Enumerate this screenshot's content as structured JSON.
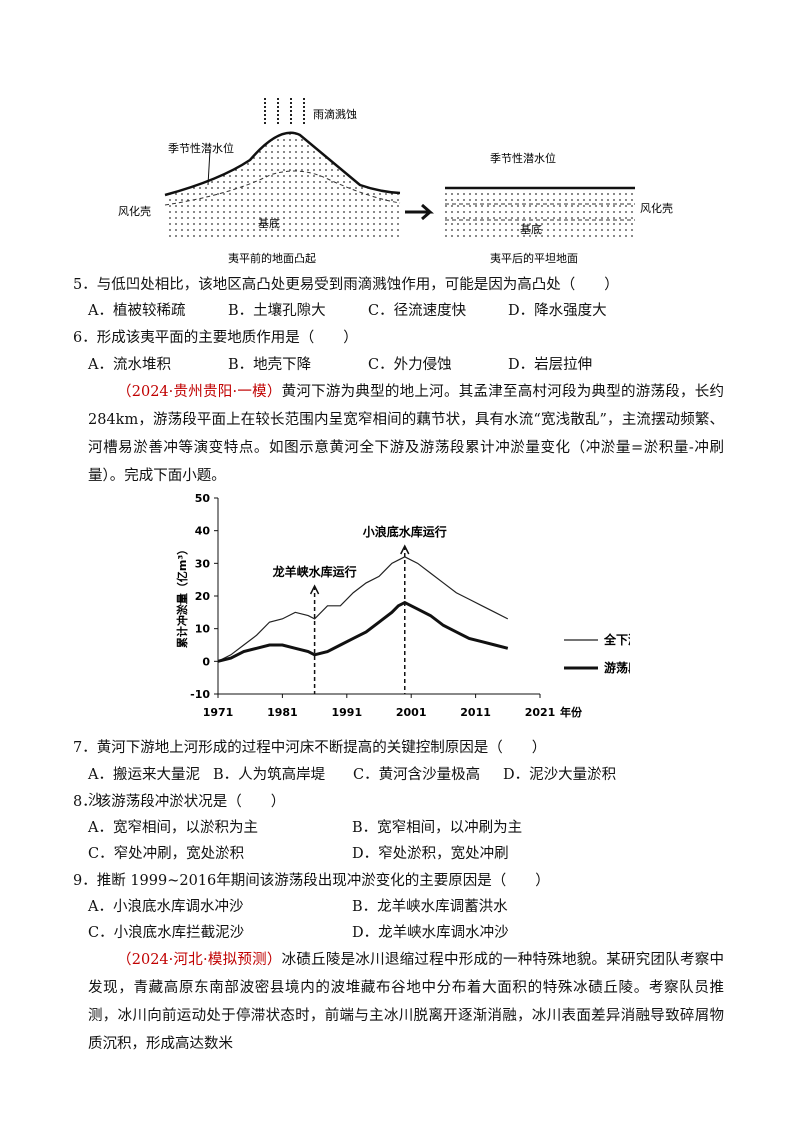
{
  "diagram": {
    "left": {
      "rain": "雨滴溅蚀",
      "water": "季节性潜水位",
      "crust": "风化壳",
      "base": "基底",
      "caption": "夷平前的地面凸起"
    },
    "right": {
      "water": "季节性潜水位",
      "crust": "风化壳",
      "base": "基底",
      "caption": "夷平后的平坦地面"
    }
  },
  "questions": [
    {
      "stem": "5．与低凹处相比，该地区高凸处更易受到雨滴溅蚀作用，可能是因为高凸处（　　）",
      "options": [
        "A．植被较稀疏",
        "B．土壤孔隙大",
        "C．径流速度快",
        "D．降水强度大"
      ]
    },
    {
      "stem": "6．形成该夷平面的主要地质作用是（　　）",
      "options": [
        "A．流水堆积",
        "B．地壳下降",
        "C．外力侵蚀",
        "D．岩层拉伸"
      ]
    },
    {
      "stem": "7．黄河下游地上河形成的过程中河床不断提高的关键控制原因是（　　）",
      "options": [
        "A．搬运来大量泥沙",
        "B．人为筑高岸堤",
        "C．黄河含沙量极高",
        "D．泥沙大量淤积"
      ]
    },
    {
      "stem": "8．该游荡段冲淤状况是（　　）",
      "options": [
        "A．宽窄相间，以淤积为主",
        "B．宽窄相间，以冲刷为主",
        "C．窄处冲刷，宽处淤积",
        "D．窄处淤积，宽处冲刷"
      ]
    },
    {
      "stem": "9．推断 1999~2016年期间该游荡段出现冲淤变化的主要原因是（　　）",
      "options": [
        "A．小浪底水库调水冲沙",
        "B．龙羊峡水库调蓄洪水",
        "C．小浪底水库拦截泥沙",
        "D．龙羊峡水库调水冲沙"
      ]
    }
  ],
  "passages": [
    {
      "source": "（2024·贵州贵阳·一模）",
      "text": "黄河下游为典型的地上河。其孟津至高村河段为典型的游荡段，长约284km，游荡段平面上在较长范围内呈宽窄相间的藕节状，具有水流“宽浅散乱”，主流摆动频繁、河槽易淤善冲等演变特点。如图示意黄河全下游及游荡段累计冲淤量变化（冲淤量=淤积量-冲刷量）。完成下面小题。"
    },
    {
      "source": "（2024·河北·模拟预测）",
      "text": "冰碛丘陵是冰川退缩过程中形成的一种特殊地貌。某研究团队考察中发现，青藏高原东南部波密县境内的波堆藏布谷地中分布着大面积的特殊冰碛丘陵。考察队员推测，冰川向前运动处于停滞状态时，前端与主冰川脱离开逐渐消融，冰川表面差异消融导致碎屑物质沉积，形成高达数米"
    }
  ],
  "chart_data": {
    "type": "line",
    "y_label": "累计冲淤量（亿m³）",
    "x_label": "年份",
    "x": [
      1971,
      1973,
      1975,
      1977,
      1979,
      1981,
      1983,
      1985,
      1986,
      1988,
      1990,
      1992,
      1994,
      1996,
      1998,
      1999,
      2000,
      2002,
      2004,
      2006,
      2008,
      2010,
      2012,
      2014,
      2016
    ],
    "series": [
      {
        "name": "全下游",
        "color": "#222222",
        "width": 1.2,
        "values": [
          0,
          2,
          5,
          8,
          12,
          13,
          15,
          14,
          13,
          17,
          17,
          21,
          24,
          26,
          30,
          31,
          32,
          30,
          27,
          24,
          21,
          19,
          17,
          15,
          13
        ]
      },
      {
        "name": "游荡段",
        "color": "#111111",
        "width": 3,
        "values": [
          0,
          1,
          3,
          4,
          5,
          5,
          4,
          3,
          2,
          3,
          5,
          7,
          9,
          12,
          15,
          17,
          18,
          16,
          14,
          11,
          9,
          7,
          6,
          5,
          4
        ]
      }
    ],
    "annotations": [
      {
        "text": "龙羊峡水库运行",
        "x": 1986
      },
      {
        "text": "小浪底水库运行",
        "x": 2000
      }
    ],
    "xlim": [
      1971,
      2021
    ],
    "xticks": [
      1971,
      1981,
      1991,
      2001,
      2011,
      2021
    ],
    "ylim": [
      -10,
      50
    ],
    "yticks": [
      -10,
      0,
      10,
      20,
      30,
      40,
      50
    ]
  }
}
